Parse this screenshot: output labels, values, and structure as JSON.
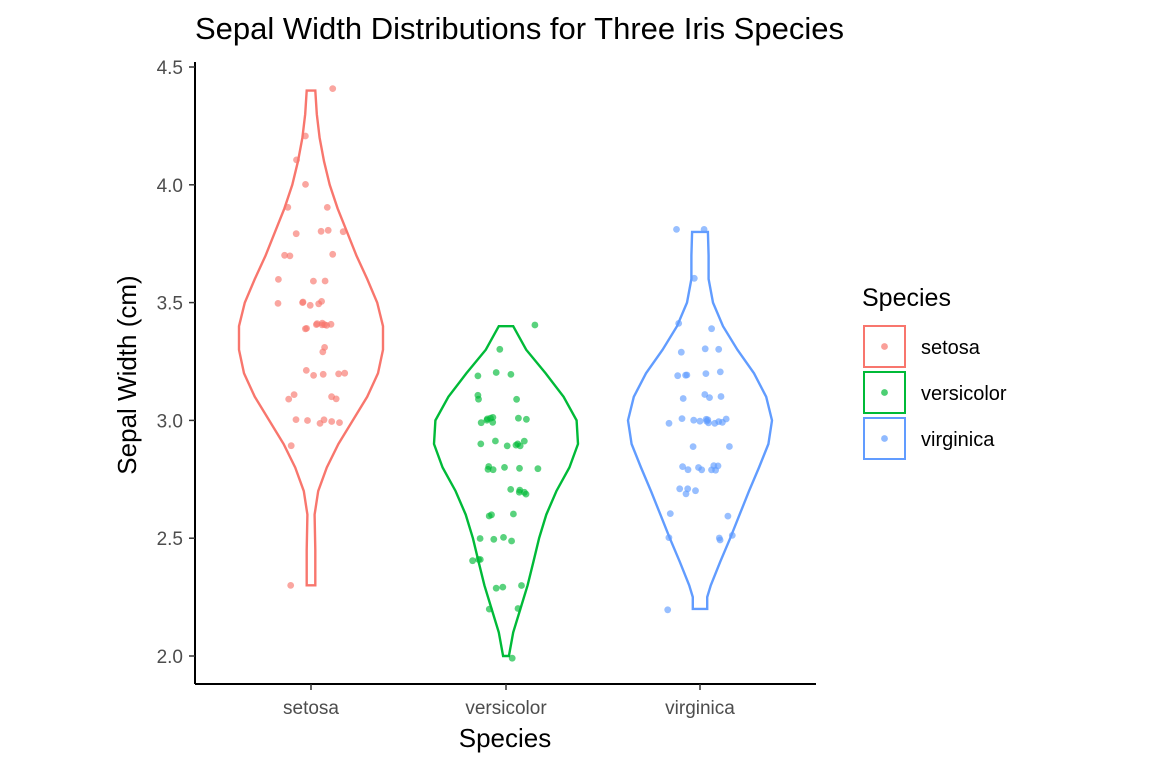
{
  "chart_data": {
    "type": "violin",
    "title": "Sepal Width Distributions for Three Iris Species",
    "xlabel": "Species",
    "ylabel": "Sepal Width (cm)",
    "ylim": [
      1.9,
      4.5
    ],
    "yticks": [
      "2.0",
      "2.5",
      "3.0",
      "3.5",
      "4.0",
      "4.5"
    ],
    "ytick_values": [
      2.0,
      2.5,
      3.0,
      3.5,
      4.0,
      4.5
    ],
    "categories": [
      "setosa",
      "versicolor",
      "virginica"
    ],
    "grid": false,
    "legend": {
      "title": "Species",
      "position": "right",
      "entries": [
        "setosa",
        "versicolor",
        "virginica"
      ]
    },
    "series": [
      {
        "name": "setosa",
        "color": "#F8766D",
        "range": [
          2.3,
          4.4
        ],
        "density": [
          [
            2.3,
            0.06
          ],
          [
            2.45,
            0.06
          ],
          [
            2.6,
            0.05
          ],
          [
            2.7,
            0.1
          ],
          [
            2.8,
            0.22
          ],
          [
            2.9,
            0.38
          ],
          [
            3.0,
            0.58
          ],
          [
            3.1,
            0.78
          ],
          [
            3.2,
            0.93
          ],
          [
            3.3,
            1.0
          ],
          [
            3.4,
            1.0
          ],
          [
            3.5,
            0.92
          ],
          [
            3.6,
            0.78
          ],
          [
            3.7,
            0.63
          ],
          [
            3.8,
            0.5
          ],
          [
            3.9,
            0.37
          ],
          [
            4.0,
            0.26
          ],
          [
            4.1,
            0.18
          ],
          [
            4.2,
            0.12
          ],
          [
            4.3,
            0.08
          ],
          [
            4.4,
            0.06
          ]
        ],
        "points": [
          3.5,
          3.0,
          3.2,
          3.1,
          3.6,
          3.9,
          3.4,
          3.4,
          2.9,
          3.1,
          3.7,
          3.4,
          3.0,
          3.0,
          4.0,
          4.4,
          3.9,
          3.5,
          3.8,
          3.8,
          3.4,
          3.7,
          3.6,
          3.3,
          3.4,
          3.0,
          3.4,
          3.5,
          3.4,
          3.2,
          3.1,
          3.4,
          4.1,
          4.2,
          3.1,
          3.2,
          3.5,
          3.6,
          3.0,
          3.4,
          3.5,
          2.3,
          3.2,
          3.5,
          3.8,
          3.0,
          3.8,
          3.2,
          3.7,
          3.3
        ]
      },
      {
        "name": "versicolor",
        "color": "#00BA38",
        "range": [
          2.0,
          3.4
        ],
        "density": [
          [
            2.0,
            0.04
          ],
          [
            2.1,
            0.1
          ],
          [
            2.2,
            0.2
          ],
          [
            2.3,
            0.3
          ],
          [
            2.4,
            0.38
          ],
          [
            2.5,
            0.46
          ],
          [
            2.6,
            0.56
          ],
          [
            2.7,
            0.7
          ],
          [
            2.8,
            0.88
          ],
          [
            2.9,
            1.0
          ],
          [
            3.0,
            0.98
          ],
          [
            3.1,
            0.8
          ],
          [
            3.2,
            0.55
          ],
          [
            3.3,
            0.28
          ],
          [
            3.4,
            0.1
          ]
        ],
        "points": [
          3.2,
          3.2,
          3.1,
          2.3,
          2.8,
          2.8,
          3.3,
          2.4,
          2.9,
          2.7,
          2.0,
          3.0,
          2.2,
          2.9,
          2.9,
          3.1,
          3.0,
          2.7,
          2.2,
          2.5,
          3.2,
          2.8,
          2.5,
          2.8,
          2.9,
          3.0,
          2.8,
          3.0,
          2.9,
          2.6,
          2.4,
          2.4,
          2.7,
          2.7,
          3.0,
          3.4,
          3.1,
          2.3,
          3.0,
          2.5,
          2.6,
          3.0,
          2.6,
          2.3,
          2.7,
          3.0,
          2.9,
          2.9,
          2.5,
          2.8
        ]
      },
      {
        "name": "virginica",
        "color": "#619CFF",
        "range": [
          2.2,
          3.8
        ],
        "density": [
          [
            2.2,
            0.1
          ],
          [
            2.25,
            0.1
          ],
          [
            2.3,
            0.15
          ],
          [
            2.4,
            0.28
          ],
          [
            2.5,
            0.42
          ],
          [
            2.6,
            0.55
          ],
          [
            2.7,
            0.68
          ],
          [
            2.8,
            0.82
          ],
          [
            2.9,
            0.95
          ],
          [
            3.0,
            1.0
          ],
          [
            3.1,
            0.92
          ],
          [
            3.2,
            0.75
          ],
          [
            3.3,
            0.52
          ],
          [
            3.4,
            0.32
          ],
          [
            3.5,
            0.18
          ],
          [
            3.6,
            0.12
          ],
          [
            3.7,
            0.12
          ],
          [
            3.8,
            0.11
          ]
        ],
        "points": [
          3.3,
          2.7,
          3.0,
          2.9,
          3.0,
          3.0,
          2.5,
          2.9,
          2.5,
          3.6,
          3.2,
          2.7,
          3.0,
          2.5,
          2.8,
          3.2,
          3.0,
          3.8,
          2.6,
          2.2,
          3.2,
          2.8,
          2.8,
          2.7,
          3.3,
          3.2,
          2.8,
          3.0,
          2.8,
          3.0,
          2.8,
          3.8,
          2.8,
          2.8,
          2.6,
          3.0,
          3.4,
          3.1,
          3.0,
          3.1,
          3.1,
          3.1,
          2.7,
          3.2,
          3.3,
          3.0,
          2.5,
          3.0,
          3.4,
          3.0
        ]
      }
    ]
  }
}
